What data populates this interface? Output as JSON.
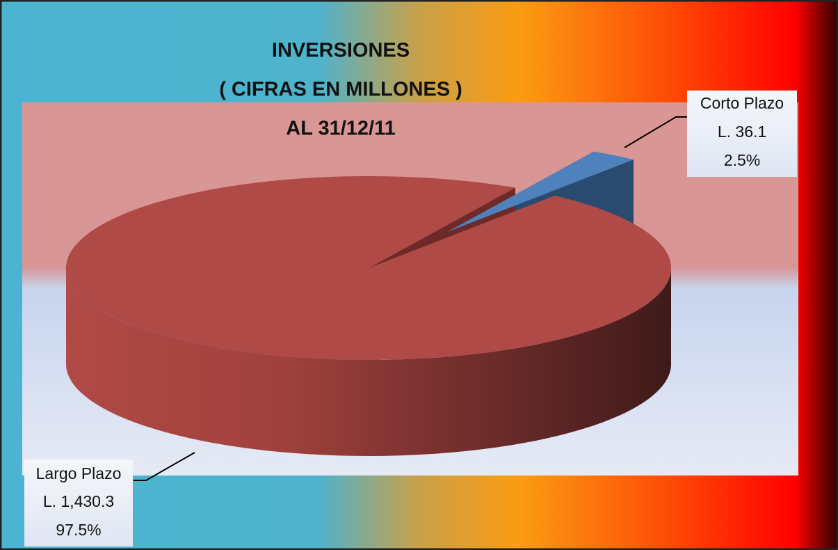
{
  "chart_data": {
    "type": "pie",
    "title": [
      "INVERSIONES",
      "( CIFRAS EN MILLONES )",
      "AL 31/12/11"
    ],
    "categories": [
      "Largo Plazo",
      "Corto Plazo"
    ],
    "values": [
      97.5,
      2.5
    ],
    "value_labels": [
      "97.5%",
      "2.5%"
    ],
    "amounts": [
      1430.3,
      36.1
    ],
    "amount_labels": [
      "L. 1,430.3",
      "L. 36.1"
    ],
    "colors": [
      "#b04a46",
      "#4f81bd"
    ]
  }
}
